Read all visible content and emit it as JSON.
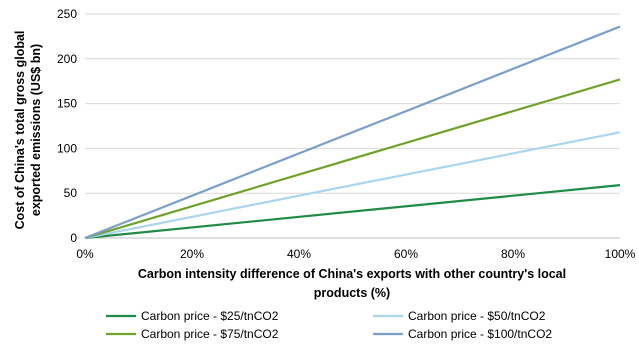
{
  "chart_data": {
    "type": "line",
    "x": [
      0,
      100
    ],
    "xticks": [
      "0%",
      "20%",
      "40%",
      "60%",
      "80%",
      "100%"
    ],
    "xtick_values": [
      0,
      20,
      40,
      60,
      80,
      100
    ],
    "xlim": [
      0,
      100
    ],
    "ylim": [
      0,
      250
    ],
    "yticks": [
      0,
      50,
      100,
      150,
      200,
      250
    ],
    "xlabel_line1": "Carbon intensity difference of China's exports with other country's local",
    "xlabel_line2": "products (%)",
    "ylabel_line1": "Cost of China's total gross global",
    "ylabel_line2": "exported emissions (US$ bn)",
    "grid": "horizontal",
    "legend_position": "bottom",
    "series": [
      {
        "name": "Carbon price - $25/tnCO2",
        "values": [
          0,
          59
        ],
        "color": "#1e8c45"
      },
      {
        "name": "Carbon price - $50/tnCO2",
        "values": [
          0,
          118
        ],
        "color": "#a9d5ee"
      },
      {
        "name": "Carbon price - $75/tnCO2",
        "values": [
          0,
          177
        ],
        "color": "#6fa22b"
      },
      {
        "name": "Carbon price - $100/tnCO2",
        "values": [
          0,
          236
        ],
        "color": "#7b9fc9"
      }
    ]
  }
}
